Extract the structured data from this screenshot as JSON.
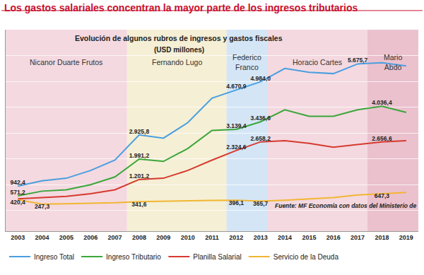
{
  "chart_data": {
    "type": "line",
    "title": "Los gastos salariales concentran la mayor parte de los ingresos tributarios",
    "subtitle": "Evolución de algunos rubros de ingresos y gastos fiscales",
    "ylabel": "(USD millones)",
    "source": "Fuente: MF Economía con datos del Ministerio de",
    "x": [
      2003,
      2004,
      2005,
      2006,
      2007,
      2008,
      2009,
      2010,
      2011,
      2012,
      2013,
      2014,
      2015,
      2016,
      2017,
      2018,
      2019
    ],
    "xlim": [
      2002.5,
      2019.5
    ],
    "xticks": [
      2003,
      2004,
      2005,
      2006,
      2007,
      2008,
      2009,
      2010,
      2011,
      2012,
      2013,
      2014,
      2015,
      2016,
      2017,
      2018,
      2019
    ],
    "ylim": [
      -800,
      7000
    ],
    "yticks": [
      0,
      1000,
      2000,
      3000,
      4000,
      5000,
      6000,
      7000
    ],
    "grid": true,
    "tick_labels": "x",
    "legend": "bottom",
    "data_labels": true,
    "periods": [
      {
        "name": "Nicanor Duarte Frutos",
        "start": 2002.5,
        "end": 2007.5,
        "color": "#f2d2db"
      },
      {
        "name": "Fernando Lugo",
        "start": 2007.5,
        "end": 2011.6,
        "color": "#f3ecce"
      },
      {
        "name": "Federico Franco",
        "start": 2011.6,
        "end": 2013.3,
        "color": "#cde2f4"
      },
      {
        "name": "Horacio Cartes",
        "start": 2013.3,
        "end": 2017.4,
        "color": "#f2d2db"
      },
      {
        "name": "Mario Abdo",
        "start": 2017.4,
        "end": 2019.5,
        "color": "#e8b6c5"
      }
    ],
    "series": [
      {
        "name": "Ingreso Total",
        "color": "#4a9fe0",
        "values": [
          942.4,
          1150,
          1250,
          1550,
          1950,
          2925.8,
          2800,
          3400,
          4350,
          4670.9,
          4984.0,
          5500,
          5350,
          5300,
          5675.7,
          5720,
          5600
        ],
        "value_labels": [
          "942,4",
          null,
          null,
          null,
          null,
          "2.925,8",
          null,
          null,
          null,
          "4.670,9",
          "4.984,0",
          null,
          null,
          null,
          "5.675,7",
          null,
          null
        ]
      },
      {
        "name": "Ingreso Tributario",
        "color": "#3aa63a",
        "values": [
          571.2,
          750,
          800,
          1000,
          1300,
          1991.2,
          1900,
          2400,
          3100,
          3139.4,
          3436.6,
          3900,
          3650,
          3650,
          3900,
          4036.4,
          3800
        ],
        "value_labels": [
          "571,2",
          null,
          null,
          null,
          null,
          "1.991,2",
          null,
          null,
          null,
          "3.139,4",
          "3.436,6",
          null,
          null,
          null,
          null,
          "4.036,4",
          null
        ]
      },
      {
        "name": "Planilla Salarial",
        "color": "#d63a2e",
        "values": [
          450,
          500,
          550,
          650,
          800,
          1201.2,
          1250,
          1550,
          1950,
          2324.6,
          2658.2,
          2700,
          2600,
          2450,
          2550,
          2656.6,
          2700
        ],
        "value_labels": [
          null,
          null,
          null,
          null,
          null,
          "1.201,2",
          null,
          null,
          null,
          "2.324,6",
          "2.658,2",
          null,
          null,
          null,
          null,
          "2.656,6",
          null
        ]
      },
      {
        "name": "Servicio de la Deuda",
        "color": "#f2b632",
        "values": [
          420.4,
          247.3,
          260,
          280,
          300,
          341.6,
          360,
          380,
          390,
          396.1,
          365.7,
          400,
          450,
          500,
          600,
          647.3,
          700
        ],
        "value_labels": [
          "420,4",
          "247,3",
          null,
          null,
          null,
          "341,6",
          null,
          null,
          null,
          "396,1",
          "365,7",
          null,
          null,
          null,
          null,
          "647,3",
          null
        ]
      }
    ]
  }
}
